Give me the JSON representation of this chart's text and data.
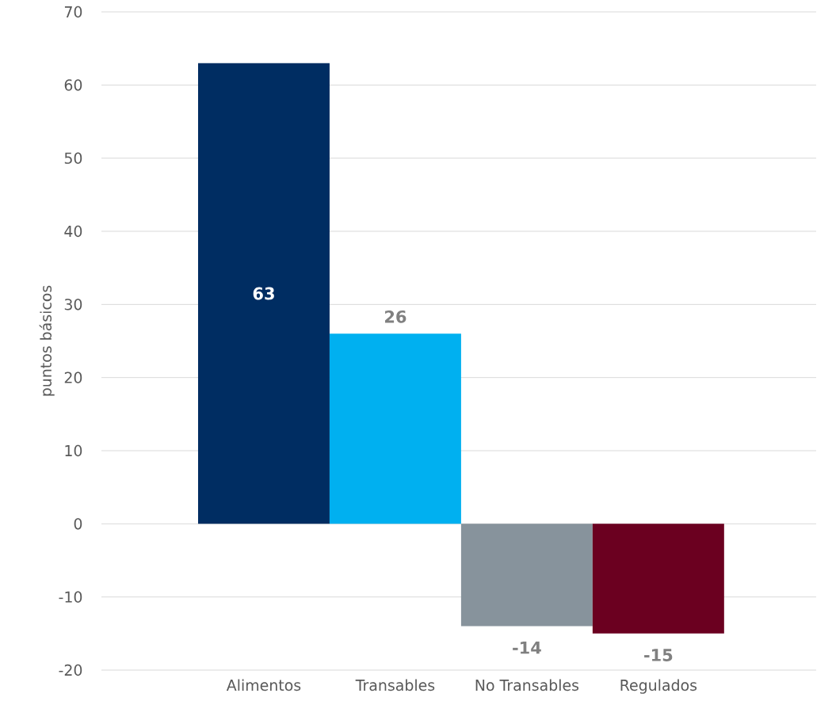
{
  "chart_data": {
    "type": "bar",
    "ylabel": "puntos básicos",
    "categories": [
      "Alimentos",
      "Transables",
      "No Transables",
      "Regulados"
    ],
    "values": [
      63,
      26,
      -14,
      -15
    ],
    "colors": [
      "#002d62",
      "#00b0f0",
      "#87939c",
      "#6b0020"
    ],
    "ylim": [
      -20,
      70
    ],
    "yticks": [
      -20,
      -10,
      0,
      10,
      20,
      30,
      40,
      50,
      60,
      70
    ],
    "grid": "y",
    "data_labels": true
  }
}
